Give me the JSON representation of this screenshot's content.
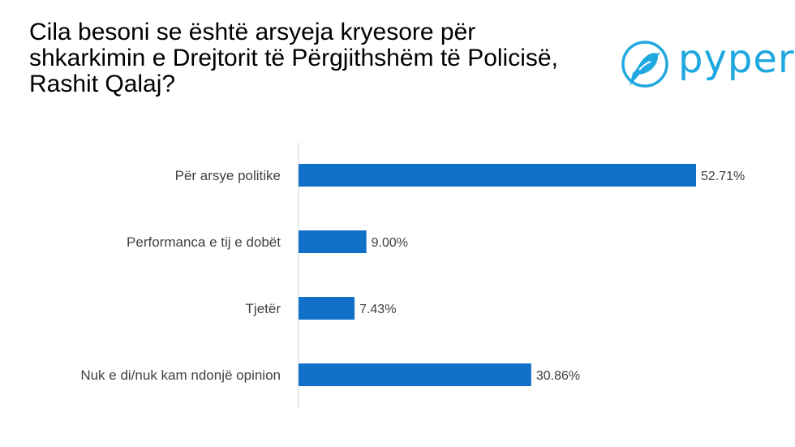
{
  "title": "Cila besoni se është arsyeja kryesore për\nshkarkimin e Drejtorit të Përgjithshëm të Policisë,\nRashit Qalaj?",
  "logo": {
    "text": "pyper",
    "color": "#1FA8E0",
    "icon": "bird-icon"
  },
  "chart_data": {
    "type": "bar",
    "orientation": "horizontal",
    "title": "Cila besoni se është arsyeja kryesore për shkarkimin e Drejtorit të Përgjithshëm të Policisë, Rashit Qalaj?",
    "categories": [
      "Për arsye politike",
      "Performanca e tij e dobët",
      "Tjetër",
      "Nuk e di/nuk kam ndonjë opinion"
    ],
    "values": [
      52.71,
      9.0,
      7.43,
      30.86
    ],
    "value_labels": [
      "52.71%",
      "9.00%",
      "7.43%",
      "30.86%"
    ],
    "unit": "%",
    "xlim": [
      0,
      55
    ],
    "grid": false,
    "legend": "none",
    "bar_color": "#1170C8",
    "axis_color": "#D9D9D9"
  }
}
